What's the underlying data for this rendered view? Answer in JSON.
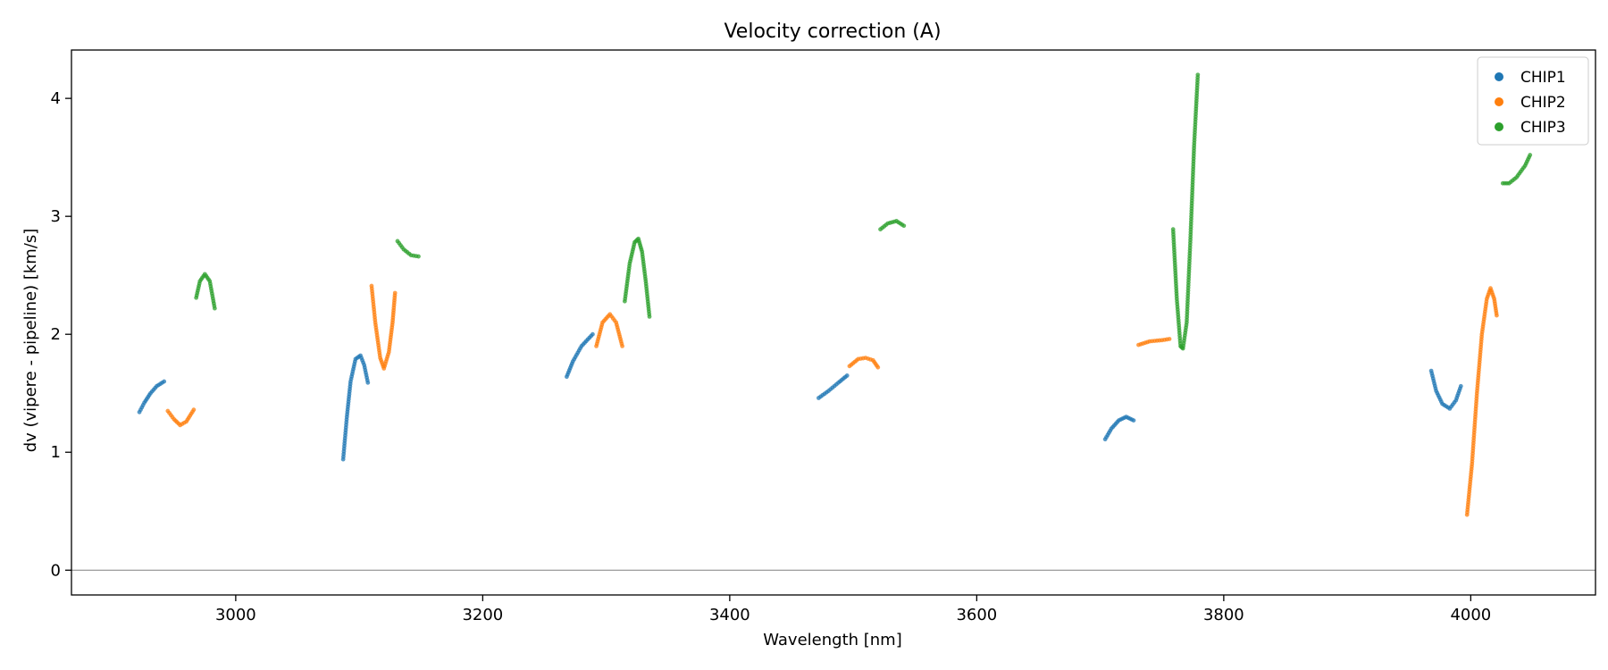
{
  "chart_data": {
    "type": "scatter",
    "title": "Velocity correction (A)",
    "xlabel": "Wavelength [nm]",
    "ylabel": "dv (vipere - pipeline) [km/s]",
    "xlim": [
      2867,
      4101
    ],
    "ylim": [
      -0.21,
      4.41
    ],
    "xticks": [
      3000,
      3200,
      3400,
      3600,
      3800,
      4000
    ],
    "yticks": [
      0,
      1,
      2,
      3,
      4
    ],
    "hline": 0,
    "legend": "top-right",
    "series": [
      {
        "name": "CHIP1",
        "color": "#1f77b4",
        "segments": [
          [
            [
              2922,
              1.34
            ],
            [
              2926,
              1.42
            ],
            [
              2931,
              1.5
            ],
            [
              2936,
              1.56
            ],
            [
              2942,
              1.6
            ]
          ],
          [
            [
              3087,
              0.94
            ],
            [
              3090,
              1.3
            ],
            [
              3093,
              1.6
            ],
            [
              3097,
              1.79
            ],
            [
              3101,
              1.82
            ],
            [
              3104,
              1.74
            ],
            [
              3107,
              1.59
            ]
          ],
          [
            [
              3268,
              1.64
            ],
            [
              3273,
              1.77
            ],
            [
              3280,
              1.9
            ],
            [
              3289,
              2.0
            ]
          ],
          [
            [
              3472,
              1.46
            ],
            [
              3480,
              1.52
            ],
            [
              3488,
              1.59
            ],
            [
              3495,
              1.65
            ]
          ],
          [
            [
              3704,
              1.11
            ],
            [
              3709,
              1.2
            ],
            [
              3715,
              1.27
            ],
            [
              3721,
              1.3
            ],
            [
              3727,
              1.27
            ]
          ],
          [
            [
              3968,
              1.69
            ],
            [
              3972,
              1.52
            ],
            [
              3977,
              1.41
            ],
            [
              3983,
              1.37
            ],
            [
              3988,
              1.44
            ],
            [
              3992,
              1.56
            ]
          ]
        ]
      },
      {
        "name": "CHIP2",
        "color": "#ff7f0e",
        "segments": [
          [
            [
              2945,
              1.35
            ],
            [
              2950,
              1.28
            ],
            [
              2955,
              1.23
            ],
            [
              2960,
              1.26
            ],
            [
              2966,
              1.36
            ]
          ],
          [
            [
              3110,
              2.41
            ],
            [
              3113,
              2.1
            ],
            [
              3117,
              1.8
            ],
            [
              3120,
              1.71
            ],
            [
              3124,
              1.85
            ],
            [
              3127,
              2.1
            ],
            [
              3129,
              2.35
            ]
          ],
          [
            [
              3292,
              1.9
            ],
            [
              3297,
              2.1
            ],
            [
              3303,
              2.17
            ],
            [
              3308,
              2.1
            ],
            [
              3313,
              1.9
            ]
          ],
          [
            [
              3497,
              1.73
            ],
            [
              3504,
              1.79
            ],
            [
              3510,
              1.8
            ],
            [
              3516,
              1.78
            ],
            [
              3520,
              1.72
            ]
          ],
          [
            [
              3731,
              1.91
            ],
            [
              3740,
              1.94
            ],
            [
              3750,
              1.95
            ],
            [
              3756,
              1.96
            ]
          ],
          [
            [
              3997,
              0.47
            ],
            [
              4001,
              0.9
            ],
            [
              4005,
              1.5
            ],
            [
              4009,
              2.0
            ],
            [
              4013,
              2.3
            ],
            [
              4016,
              2.39
            ],
            [
              4019,
              2.3
            ],
            [
              4021,
              2.16
            ]
          ]
        ]
      },
      {
        "name": "CHIP3",
        "color": "#2ca02c",
        "segments": [
          [
            [
              2968,
              2.31
            ],
            [
              2971,
              2.45
            ],
            [
              2975,
              2.51
            ],
            [
              2979,
              2.45
            ],
            [
              2983,
              2.22
            ]
          ],
          [
            [
              3131,
              2.79
            ],
            [
              3136,
              2.72
            ],
            [
              3142,
              2.67
            ],
            [
              3148,
              2.66
            ]
          ],
          [
            [
              3315,
              2.28
            ],
            [
              3319,
              2.6
            ],
            [
              3323,
              2.78
            ],
            [
              3326,
              2.81
            ],
            [
              3329,
              2.7
            ],
            [
              3332,
              2.45
            ],
            [
              3335,
              2.15
            ]
          ],
          [
            [
              3522,
              2.89
            ],
            [
              3528,
              2.94
            ],
            [
              3535,
              2.96
            ],
            [
              3541,
              2.92
            ]
          ],
          [
            [
              3759,
              2.89
            ],
            [
              3762,
              2.3
            ],
            [
              3765,
              1.9
            ],
            [
              3767,
              1.88
            ],
            [
              3770,
              2.1
            ],
            [
              3773,
              2.8
            ],
            [
              3776,
              3.6
            ],
            [
              3779,
              4.2
            ]
          ],
          [
            [
              4026,
              3.28
            ],
            [
              4031,
              3.28
            ],
            [
              4037,
              3.33
            ],
            [
              4044,
              3.43
            ],
            [
              4048,
              3.52
            ]
          ]
        ]
      }
    ]
  }
}
